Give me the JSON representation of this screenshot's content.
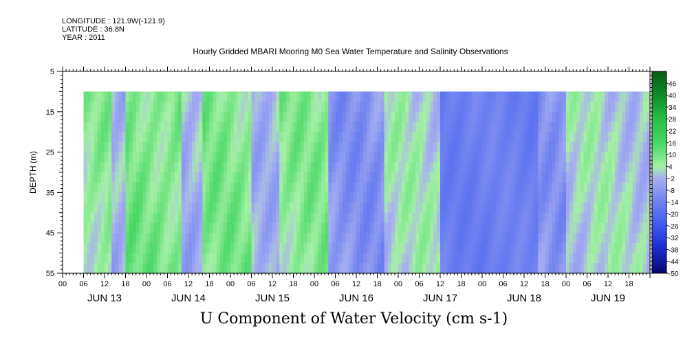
{
  "header": {
    "longitude": "LONGITUDE : 121.9W(-121.9)",
    "latitude": "LATITUDE : 36.8N",
    "year": "YEAR : 2011",
    "title": "Hourly Gridded MBARI Mooring M0 Sea Water Temperature and Salinity Observations"
  },
  "chart_data": {
    "type": "heatmap",
    "title": "Hourly Gridded MBARI Mooring M0 Sea Water Temperature and Salinity Observations",
    "variable_title": "U Component of Water Velocity (cm s-1)",
    "ylabel": "DEPTH (m)",
    "y_ticks": [
      "5",
      "15",
      "25",
      "35",
      "45",
      "55"
    ],
    "ylim": [
      5,
      55
    ],
    "y_direction": "downward",
    "x_hour_ticks": [
      "00",
      "06",
      "12",
      "18",
      "00",
      "06",
      "12",
      "18",
      "00",
      "06",
      "12",
      "18",
      "00",
      "06",
      "12",
      "18",
      "00",
      "06",
      "12",
      "18",
      "00",
      "06",
      "12",
      "18",
      "00",
      "06",
      "12",
      "18"
    ],
    "x_day_labels": [
      "JUN 13",
      "JUN 14",
      "JUN 15",
      "JUN 16",
      "JUN 17",
      "JUN 18",
      "JUN 19"
    ],
    "colorbar_labels": [
      "46",
      "40",
      "34",
      "28",
      "22",
      "16",
      "10",
      "4",
      "-2",
      "-8",
      "-14",
      "-20",
      "-26",
      "-32",
      "-38",
      "-44",
      "-50"
    ],
    "colorbar_range": [
      -50,
      52
    ],
    "data_start": "JUN 13 06:00",
    "data_end": "JUN 19 23:00",
    "data_depth_range": [
      10,
      55
    ],
    "segments": [
      {
        "start": "JUN 13 06:00",
        "end": "JUN 13 14:00",
        "mean": 6
      },
      {
        "start": "JUN 13 14:00",
        "end": "JUN 13 18:00",
        "mean": -4
      },
      {
        "start": "JUN 13 18:00",
        "end": "JUN 14 10:00",
        "mean": 9
      },
      {
        "start": "JUN 14 10:00",
        "end": "JUN 14 16:00",
        "mean": -3
      },
      {
        "start": "JUN 14 16:00",
        "end": "JUN 15 06:00",
        "mean": 8
      },
      {
        "start": "JUN 15 06:00",
        "end": "JUN 15 14:00",
        "mean": -2
      },
      {
        "start": "JUN 15 14:00",
        "end": "JUN 16 04:00",
        "mean": 7
      },
      {
        "start": "JUN 16 04:00",
        "end": "JUN 16 20:00",
        "mean": -9
      },
      {
        "start": "JUN 16 20:00",
        "end": "JUN 17 12:00",
        "mean": 2
      },
      {
        "start": "JUN 17 12:00",
        "end": "JUN 18 16:00",
        "mean": -15
      },
      {
        "start": "JUN 18 16:00",
        "end": "JUN 19 00:00",
        "mean": -8
      },
      {
        "start": "JUN 19 00:00",
        "end": "JUN 19 23:00",
        "mean": 1
      }
    ]
  }
}
